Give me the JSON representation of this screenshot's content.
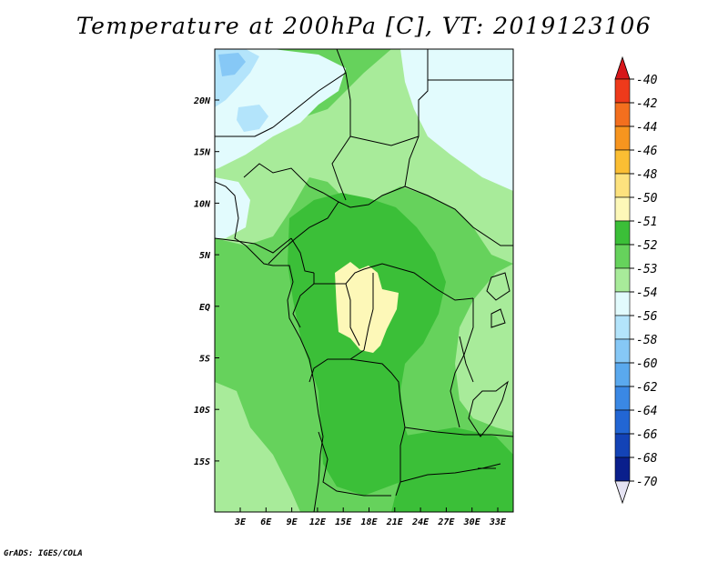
{
  "title": "Temperature at 200hPa [C], VT: 2019123106",
  "credit": "GrADS: IGES/COLA",
  "map": {
    "lat_labels": [
      "20N",
      "15N",
      "10N",
      "5N",
      "EQ",
      "5S",
      "10S",
      "15S"
    ],
    "lon_labels": [
      "3E",
      "6E",
      "9E",
      "12E",
      "15E",
      "18E",
      "21E",
      "24E",
      "27E",
      "30E",
      "33E"
    ]
  },
  "colorbar": {
    "labels": [
      "-40",
      "-42",
      "-44",
      "-46",
      "-48",
      "-50",
      "-51",
      "-52",
      "-53",
      "-54",
      "-56",
      "-58",
      "-60",
      "-62",
      "-64",
      "-66",
      "-68",
      "-70"
    ],
    "colors": {
      "top_triangle": "#d7161a",
      "bins": [
        "#ee3a1b",
        "#f36f1e",
        "#f7951f",
        "#fbbe33",
        "#fde27e",
        "#fdf8b8",
        "#3bbf38",
        "#66d25c",
        "#a8eb9a",
        "#e2fbfd",
        "#b3e4fb",
        "#86c8f6",
        "#5aa9ee",
        "#3a88e4",
        "#2266d4",
        "#1343b6",
        "#0a1f8c"
      ],
      "bottom_triangle": "#e5e3f3"
    }
  },
  "field_colors": {
    "c51": "#fdf8b8",
    "c52": "#3bbf38",
    "c53": "#66d25c",
    "c54": "#a8eb9a",
    "c56": "#e2fbfd",
    "c58": "#b3e4fb",
    "c60": "#86c8f6"
  }
}
